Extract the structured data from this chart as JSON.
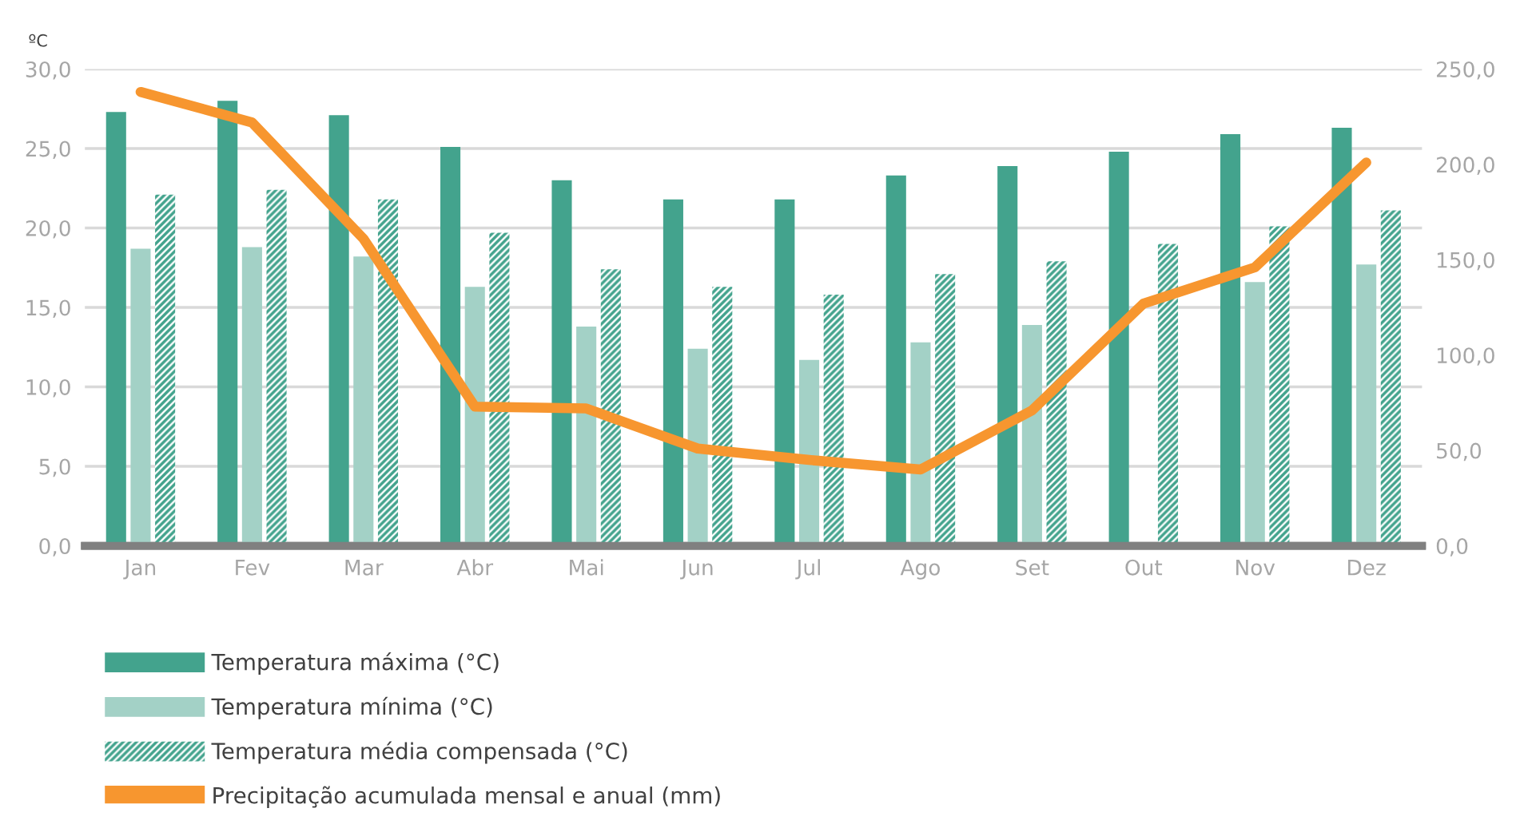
{
  "chart_data": {
    "type": "bar",
    "ylabel": "ºC",
    "categories": [
      "Jan",
      "Fev",
      "Mar",
      "Abr",
      "Mai",
      "Jun",
      "Jul",
      "Ago",
      "Set",
      "Out",
      "Nov",
      "Dez"
    ],
    "series": [
      {
        "name": "Temperatura máxima (°C)",
        "color": "#43a38d",
        "values": [
          27.3,
          28.0,
          27.1,
          25.1,
          23.0,
          21.8,
          21.8,
          23.3,
          23.9,
          24.8,
          25.9,
          26.3
        ]
      },
      {
        "name": "Temperatura mínima (°C)",
        "color": "#a3d1c6",
        "values": [
          18.7,
          18.8,
          18.2,
          16.3,
          13.8,
          12.4,
          11.7,
          12.8,
          13.9,
          null,
          16.6,
          17.7
        ]
      },
      {
        "name": "Temperatura média compensada (°C)",
        "color": "#43a38d",
        "values": [
          22.1,
          22.4,
          21.8,
          19.7,
          17.4,
          16.3,
          15.8,
          17.1,
          17.9,
          19.0,
          20.1,
          21.1
        ]
      },
      {
        "name": "Precipitação acumulada mensal e anual (mm)",
        "type": "line",
        "axis": "y2",
        "color": "#f7962f",
        "values": [
          238,
          222,
          161,
          73,
          72,
          51,
          45,
          40,
          71,
          127,
          146,
          201
        ]
      }
    ],
    "ylim": [
      0,
      30
    ],
    "yticks": [
      {
        "value": 0,
        "label": "0,0"
      },
      {
        "value": 5,
        "label": "5,0"
      },
      {
        "value": 10,
        "label": "10,0"
      },
      {
        "value": 15,
        "label": "15,0"
      },
      {
        "value": 20,
        "label": "20,0"
      },
      {
        "value": 25,
        "label": "25,0"
      },
      {
        "value": 30,
        "label": "30,0"
      }
    ],
    "y2lim": [
      0,
      250
    ],
    "y2ticks": [
      {
        "value": 0,
        "label": "0,0"
      },
      {
        "value": 50,
        "label": "50,0"
      },
      {
        "value": 100,
        "label": "100,0"
      },
      {
        "value": 150,
        "label": "150,0"
      },
      {
        "value": 200,
        "label": "200,0"
      },
      {
        "value": 250,
        "label": "250,0"
      }
    ],
    "grid": "y",
    "legend": "bottom left",
    "line_style": "solid"
  }
}
